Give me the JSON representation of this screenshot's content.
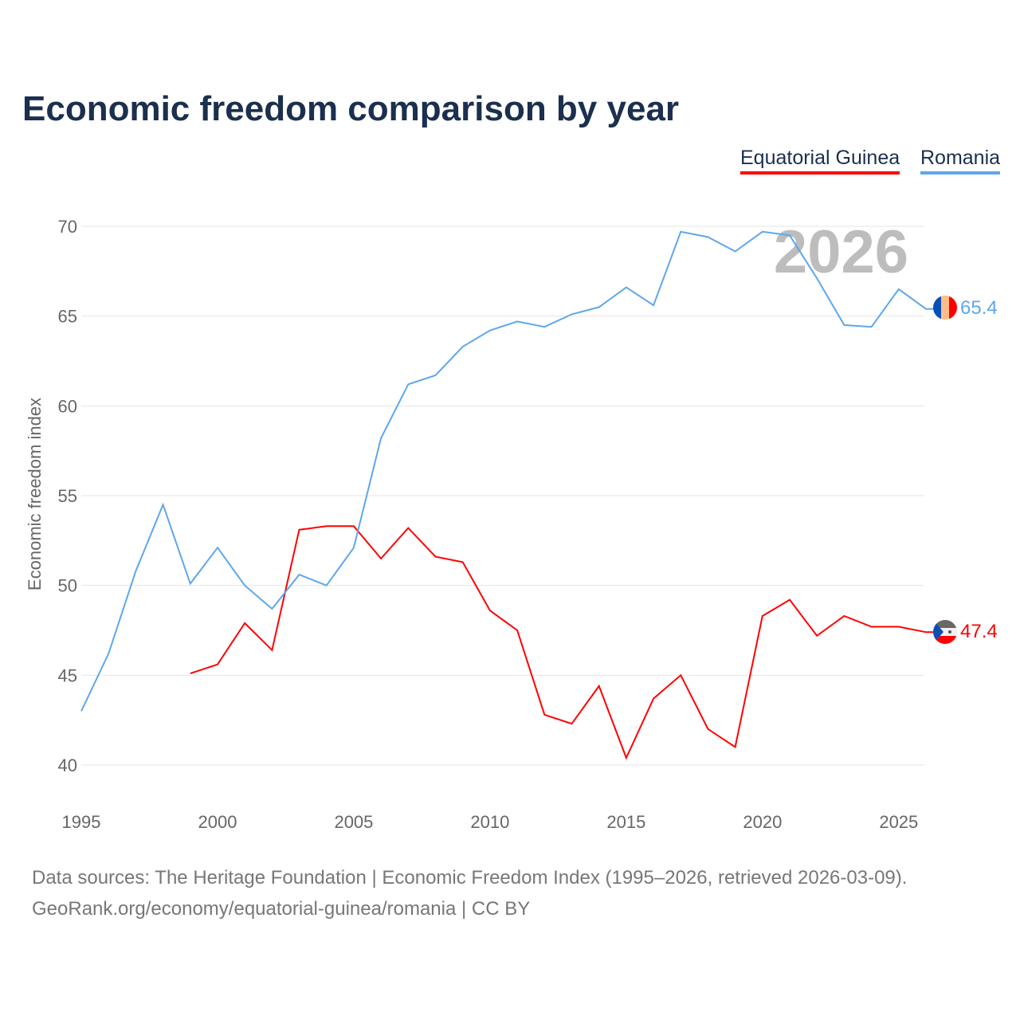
{
  "chart_data": {
    "type": "line",
    "title": "Economic freedom comparison by year",
    "ylabel": "Economic freedom index",
    "xlabel": "",
    "ylim": [
      40,
      70
    ],
    "xlim": [
      1995,
      2026
    ],
    "yticks": [
      40,
      45,
      50,
      55,
      60,
      65,
      70
    ],
    "xticks": [
      1995,
      2000,
      2005,
      2010,
      2015,
      2020,
      2025
    ],
    "grid": true,
    "legend_placement": "top-right",
    "year_watermark": "2026",
    "series": [
      {
        "name": "Equatorial Guinea",
        "color": "#ff0000",
        "end_label": "47.4",
        "x": [
          1999,
          2000,
          2001,
          2002,
          2003,
          2004,
          2005,
          2006,
          2007,
          2008,
          2009,
          2010,
          2011,
          2012,
          2013,
          2014,
          2015,
          2016,
          2017,
          2018,
          2019,
          2020,
          2021,
          2022,
          2023,
          2024,
          2025,
          2026
        ],
        "values": [
          45.1,
          45.6,
          47.9,
          46.4,
          53.1,
          53.3,
          53.3,
          51.5,
          53.2,
          51.6,
          51.3,
          48.6,
          47.5,
          42.8,
          42.3,
          44.4,
          40.4,
          43.7,
          45.0,
          42.0,
          41.0,
          48.3,
          49.2,
          47.2,
          48.3,
          47.7,
          47.7,
          47.4
        ]
      },
      {
        "name": "Romania",
        "color": "#5ea6ec",
        "end_label": "65.4",
        "x": [
          1995,
          1996,
          1997,
          1998,
          1999,
          2000,
          2001,
          2002,
          2003,
          2004,
          2005,
          2006,
          2007,
          2008,
          2009,
          2010,
          2011,
          2012,
          2013,
          2014,
          2015,
          2016,
          2017,
          2018,
          2019,
          2020,
          2021,
          2022,
          2023,
          2024,
          2025,
          2026
        ],
        "values": [
          43.0,
          46.2,
          50.8,
          54.5,
          50.1,
          52.1,
          50.0,
          48.7,
          50.6,
          50.0,
          52.1,
          58.2,
          61.2,
          61.7,
          63.3,
          64.2,
          64.7,
          64.4,
          65.1,
          65.5,
          66.6,
          65.6,
          69.7,
          69.4,
          68.6,
          69.7,
          69.5,
          67.1,
          64.5,
          64.4,
          66.5,
          65.4
        ]
      }
    ]
  },
  "footer": {
    "line1": "Data sources: The Heritage Foundation | Economic Freedom Index (1995–2026, retrieved 2026-03-09).",
    "line2": "GeoRank.org/economy/equatorial-guinea/romania | CC BY"
  }
}
